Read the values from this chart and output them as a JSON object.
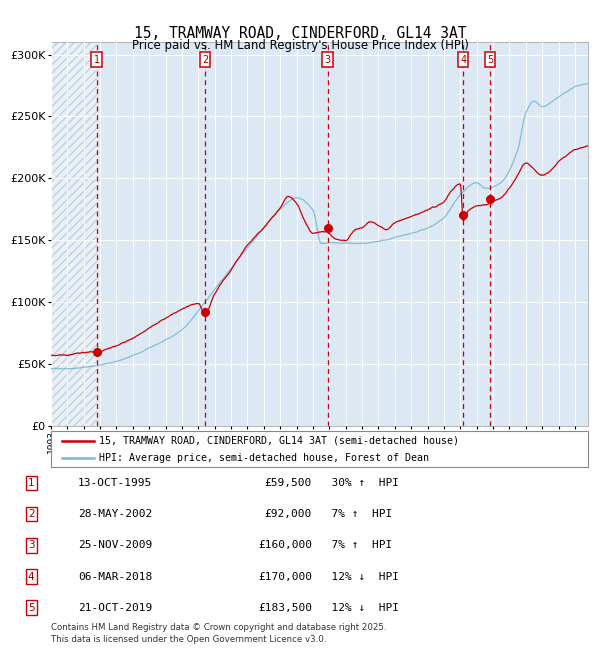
{
  "title1": "15, TRAMWAY ROAD, CINDERFORD, GL14 3AT",
  "title2": "Price paid vs. HM Land Registry's House Price Index (HPI)",
  "legend_line1": "15, TRAMWAY ROAD, CINDERFORD, GL14 3AT (semi-detached house)",
  "legend_line2": "HPI: Average price, semi-detached house, Forest of Dean",
  "footer": "Contains HM Land Registry data © Crown copyright and database right 2025.\nThis data is licensed under the Open Government Licence v3.0.",
  "transactions": [
    {
      "num": 1,
      "date": "13-OCT-1995",
      "price": 59500,
      "pct": "30%",
      "dir": "↑"
    },
    {
      "num": 2,
      "date": "28-MAY-2002",
      "price": 92000,
      "pct": "7%",
      "dir": "↑"
    },
    {
      "num": 3,
      "date": "25-NOV-2009",
      "price": 160000,
      "pct": "7%",
      "dir": "↑"
    },
    {
      "num": 4,
      "date": "06-MAR-2018",
      "price": 170000,
      "pct": "12%",
      "dir": "↓"
    },
    {
      "num": 5,
      "date": "21-OCT-2019",
      "price": 183500,
      "pct": "12%",
      "dir": "↓"
    }
  ],
  "transaction_years": [
    1995.79,
    2002.41,
    2009.9,
    2018.18,
    2019.81
  ],
  "transaction_prices": [
    59500,
    92000,
    160000,
    170000,
    183500
  ],
  "ylim": [
    0,
    310000
  ],
  "xlim_start": 1993.0,
  "xlim_end": 2025.8,
  "yticks": [
    0,
    50000,
    100000,
    150000,
    200000,
    250000,
    300000
  ],
  "ytick_labels": [
    "£0",
    "£50K",
    "£100K",
    "£150K",
    "£200K",
    "£250K",
    "£300K"
  ],
  "bg_color": "#dce9f5",
  "hatch_end_year": 1995.79,
  "line_color_price": "#cc0000",
  "line_color_hpi": "#7ab8d4",
  "dot_color": "#cc0000",
  "grid_color": "white"
}
